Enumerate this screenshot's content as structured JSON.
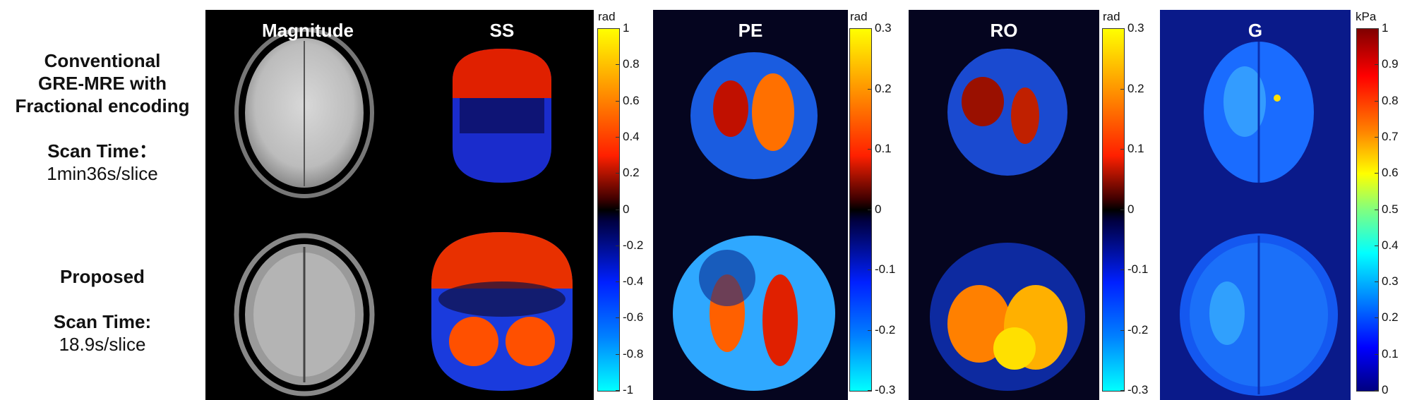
{
  "row_labels": {
    "top": {
      "title_lines": [
        "Conventional",
        "GRE-MRE with",
        "Fractional encoding"
      ],
      "time_label": "Scan Time：",
      "time_value": "1min36s/slice"
    },
    "bottom": {
      "title_lines": [
        "Proposed"
      ],
      "time_label": "Scan Time:",
      "time_value": "18.9s/slice"
    }
  },
  "panels": [
    {
      "id": "magnitude",
      "title": "Magnitude",
      "background": "#000000"
    },
    {
      "id": "ss",
      "title": "SS",
      "background": "#000000"
    },
    {
      "id": "pe",
      "title": "PE",
      "background": "#05051f"
    },
    {
      "id": "ro",
      "title": "RO",
      "background": "#05051f"
    },
    {
      "id": "g",
      "title": "G",
      "background": "#0a1a8a"
    }
  ],
  "colorbars": [
    {
      "id": "ss-colorbar",
      "unit": "rad",
      "ticks": [
        "1",
        "0.8",
        "0.6",
        "0.4",
        "0.2",
        "0",
        "-0.2",
        "-0.4",
        "-0.6",
        "-0.8",
        "-1"
      ],
      "colormap": "phase"
    },
    {
      "id": "pe-colorbar",
      "unit": "rad",
      "ticks": [
        "0.3",
        "0.2",
        "0.1",
        "0",
        "-0.1",
        "-0.2",
        "-0.3"
      ],
      "colormap": "phase"
    },
    {
      "id": "ro-colorbar",
      "unit": "rad",
      "ticks": [
        "0.3",
        "0.2",
        "0.1",
        "0",
        "-0.1",
        "-0.2",
        "-0.3"
      ],
      "colormap": "phase"
    },
    {
      "id": "g-colorbar",
      "unit": "kPa",
      "ticks": [
        "1",
        "0.9",
        "0.8",
        "0.7",
        "0.6",
        "0.5",
        "0.4",
        "0.3",
        "0.2",
        "0.1",
        "0"
      ],
      "colormap": "jet"
    }
  ],
  "colors": {
    "phase_colormap": [
      "#ffff00",
      "#ff8000",
      "#ff2000",
      "#400000",
      "#000000",
      "#000040",
      "#0020ff",
      "#0080ff",
      "#00ffff"
    ],
    "jet_colormap": [
      "#800000",
      "#ff0000",
      "#ff8000",
      "#ffff00",
      "#80ff80",
      "#00ffff",
      "#0080ff",
      "#0000ff",
      "#000080"
    ]
  }
}
